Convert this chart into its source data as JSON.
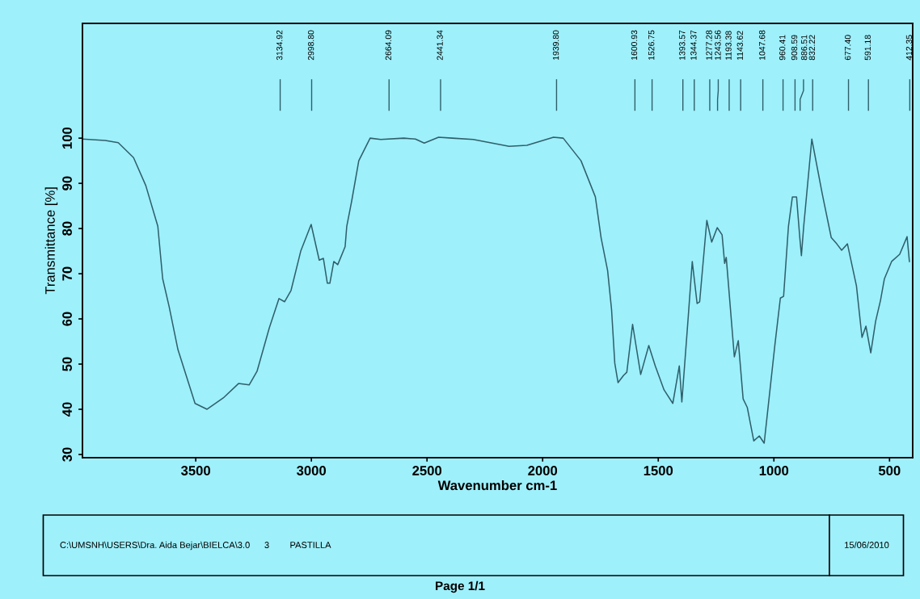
{
  "chart_data": {
    "type": "line",
    "xlabel": "Wavenumber cm-1",
    "ylabel": "Transmittance [%]",
    "xlim": [
      3990,
      400
    ],
    "ylim": [
      29.3,
      125.4
    ],
    "xticks": [
      3500,
      3000,
      2500,
      2000,
      1500,
      1000,
      500
    ],
    "yticks": [
      30,
      40,
      50,
      60,
      70,
      80,
      90,
      100
    ],
    "grid": false,
    "legend": false,
    "marker": "none",
    "line_style": "solid",
    "series": [
      {
        "color": "#2f5f6a",
        "x": [
          3990,
          3891,
          3835,
          3769,
          3716,
          3664,
          3643,
          3615,
          3577,
          3503,
          3451,
          3381,
          3315,
          3269,
          3235,
          3182,
          3140,
          3116,
          3088,
          3046,
          3001,
          2966,
          2948,
          2931,
          2920,
          2903,
          2886,
          2854,
          2847,
          2826,
          2795,
          2746,
          2700,
          2600,
          2550,
          2512,
          2450,
          2390,
          2300,
          2145,
          2068,
          1953,
          1911,
          1834,
          1772,
          1747,
          1719,
          1702,
          1688,
          1674,
          1650,
          1636,
          1611,
          1576,
          1541,
          1513,
          1475,
          1437,
          1409,
          1398,
          1370,
          1353,
          1332,
          1321,
          1290,
          1269,
          1245,
          1224,
          1213,
          1206,
          1171,
          1154,
          1133,
          1115,
          1087,
          1063,
          1042,
          996,
          972,
          958,
          937,
          920,
          902,
          888,
          881,
          871,
          836,
          791,
          752,
          728,
          707,
          682,
          643,
          619,
          602,
          581,
          560,
          539,
          522,
          491,
          456,
          424,
          414
        ],
        "values": [
          99.8,
          99.5,
          99,
          95.7,
          89.5,
          80.5,
          68.9,
          62.7,
          53.2,
          41.3,
          40.0,
          42.5,
          45.7,
          45.4,
          48.4,
          58.0,
          64.5,
          63.8,
          66.3,
          75,
          80.9,
          73,
          73.4,
          67.9,
          67.9,
          72.7,
          72,
          76,
          80.5,
          86,
          95,
          100,
          99.7,
          100,
          99.8,
          98.9,
          100.2,
          100,
          99.7,
          98.2,
          98.4,
          100.2,
          100,
          95,
          87,
          77.9,
          70.7,
          62.1,
          50.2,
          45.9,
          47.5,
          48.2,
          58.8,
          47.7,
          54.1,
          49.6,
          44.3,
          41.3,
          49.6,
          41.6,
          60.7,
          72.7,
          63.4,
          63.8,
          81.8,
          77,
          80.2,
          78.6,
          72.3,
          73.6,
          51.6,
          55.2,
          42.3,
          40.4,
          33,
          34.1,
          32.5,
          54.1,
          64.6,
          65,
          80.5,
          87,
          87,
          78,
          74,
          80.5,
          99.8,
          87.7,
          78,
          76.6,
          75.2,
          76.6,
          67.3,
          55.9,
          58.4,
          52.5,
          59.5,
          64.1,
          68.9,
          72.7,
          74.3,
          78.2,
          72.7
        ]
      }
    ],
    "x2lim": [
      3990,
      400
    ],
    "x2ticks": [
      {
        "value": 3134.92,
        "label": "3134.92"
      },
      {
        "value": 2998.8,
        "label": "2998.80"
      },
      {
        "value": 2664.09,
        "label": "2664.09"
      },
      {
        "value": 2441.34,
        "label": "2441.34"
      },
      {
        "value": 1939.8,
        "label": "1939.80"
      },
      {
        "value": 1600.93,
        "label": "1600.93"
      },
      {
        "value": 1526.75,
        "label": "1526.75"
      },
      {
        "value": 1393.57,
        "label": "1393.57"
      },
      {
        "value": 1344.37,
        "label": "1344.37"
      },
      {
        "value": 1277.28,
        "label": "1277.28"
      },
      {
        "value": 1243.56,
        "label": "1243.56"
      },
      {
        "value": 1193.38,
        "label": "1193.38"
      },
      {
        "value": 1143.62,
        "label": "1143.62"
      },
      {
        "value": 1047.68,
        "label": "1047.68"
      },
      {
        "value": 960.41,
        "label": "960.41"
      },
      {
        "value": 908.59,
        "label": "908.59"
      },
      {
        "value": 886.51,
        "label": "886.51"
      },
      {
        "value": 832.22,
        "label": "832.22"
      },
      {
        "value": 677.4,
        "label": "677.40"
      },
      {
        "value": 591.18,
        "label": "591.18"
      },
      {
        "value": 412.35,
        "label": "412.35"
      }
    ],
    "annotations": [
      "C:\\UMSNH\\USERS\\Dra. Aida Bejar\\BIELCA\\3.0",
      "3",
      "PASTILLA",
      "15/06/2010",
      "Page 1/1"
    ]
  }
}
